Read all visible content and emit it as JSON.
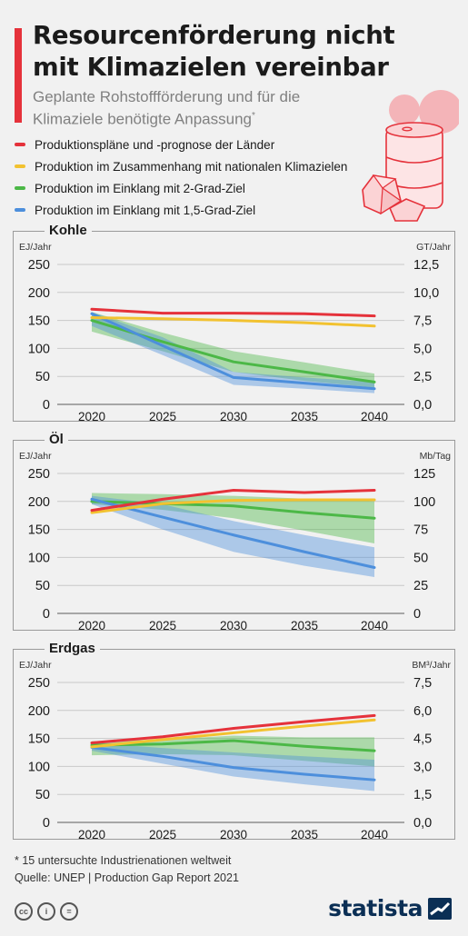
{
  "header": {
    "title": "Resourcenförderung nicht mit Klimazielen vereinbar",
    "subtitle": "Geplante Rohstoffförderung und für die Klimaziele benötigte Anpassung",
    "subtitle_mark": "*"
  },
  "legend": [
    {
      "label": "Produktionspläne und -prognose der Länder",
      "color": "#e5323b"
    },
    {
      "label": "Produktion im Zusammenhang mit nationalen Klimazielen",
      "color": "#f2c230"
    },
    {
      "label": "Produktion im Einklang mit 2-Grad-Ziel",
      "color": "#4cb847"
    },
    {
      "label": "Produktion im Einklang mit 1,5-Grad-Ziel",
      "color": "#4d8fdc"
    }
  ],
  "chart_data": [
    {
      "type": "line",
      "title": "Kohle",
      "ylabel": "EJ/Jahr",
      "ylabel_right": "GT/Jahr",
      "x": [
        2020,
        2025,
        2030,
        2035,
        2040
      ],
      "x_ticks": [
        "2020",
        "2025",
        "2030",
        "2035",
        "2040"
      ],
      "ylim": [
        0,
        250
      ],
      "y_ticks": [
        "0",
        "50",
        "100",
        "150",
        "200",
        "250"
      ],
      "y_ticks_right": [
        "0,0",
        "2,5",
        "5,0",
        "7,5",
        "10,0",
        "12,5"
      ],
      "grid": true,
      "series": [
        {
          "values": [
            170,
            163,
            163,
            162,
            158
          ],
          "color": "#e5323b"
        },
        {
          "values": [
            155,
            153,
            150,
            146,
            140
          ],
          "color": "#f2c230"
        },
        {
          "values": [
            150,
            112,
            76,
            58,
            40
          ],
          "color": "#4cb847",
          "band": {
            "low": [
              130,
              95,
              58,
              42,
              30
            ],
            "high": [
              165,
              128,
              95,
              75,
              55
            ]
          }
        },
        {
          "values": [
            162,
            105,
            48,
            38,
            28
          ],
          "color": "#4d8fdc",
          "band": {
            "low": [
              140,
              88,
              35,
              28,
              20
            ],
            "high": [
              165,
              120,
              58,
              48,
              40
            ]
          }
        }
      ]
    },
    {
      "type": "line",
      "title": "Öl",
      "ylabel": "EJ/Jahr",
      "ylabel_right": "Mb/Tag",
      "x": [
        2020,
        2025,
        2030,
        2035,
        2040
      ],
      "x_ticks": [
        "2020",
        "2025",
        "2030",
        "2035",
        "2040"
      ],
      "ylim": [
        0,
        250
      ],
      "y_ticks": [
        "0",
        "50",
        "100",
        "150",
        "200",
        "250"
      ],
      "y_ticks_right": [
        "0",
        "25",
        "50",
        "75",
        "100",
        "125"
      ],
      "grid": true,
      "series": [
        {
          "values": [
            184,
            204,
            220,
            216,
            220
          ],
          "color": "#e5323b"
        },
        {
          "values": [
            180,
            196,
            202,
            203,
            203
          ],
          "color": "#f2c230"
        },
        {
          "values": [
            200,
            196,
            192,
            180,
            170
          ],
          "color": "#4cb847",
          "band": {
            "low": [
              195,
              185,
              170,
              148,
              125
            ],
            "high": [
              215,
              213,
              210,
              205,
              200
            ]
          }
        },
        {
          "values": [
            204,
            172,
            140,
            110,
            82
          ],
          "color": "#4d8fdc",
          "band": {
            "low": [
              195,
              150,
              110,
              85,
              65
            ],
            "high": [
              210,
              195,
              165,
              140,
              118
            ]
          }
        }
      ]
    },
    {
      "type": "line",
      "title": "Erdgas",
      "ylabel": "EJ/Jahr",
      "ylabel_right": "BM³/Jahr",
      "x": [
        2020,
        2025,
        2030,
        2035,
        2040
      ],
      "x_ticks": [
        "2020",
        "2025",
        "2030",
        "2035",
        "2040"
      ],
      "ylim": [
        0,
        250
      ],
      "y_ticks": [
        "0",
        "50",
        "100",
        "150",
        "200",
        "250"
      ],
      "y_ticks_right": [
        "0,0",
        "1,5",
        "3,0",
        "4,5",
        "6,0",
        "7,5"
      ],
      "grid": true,
      "series": [
        {
          "values": [
            142,
            153,
            168,
            180,
            191
          ],
          "color": "#e5323b"
        },
        {
          "values": [
            135,
            148,
            160,
            172,
            183
          ],
          "color": "#f2c230"
        },
        {
          "values": [
            138,
            140,
            146,
            136,
            128
          ],
          "color": "#4cb847",
          "band": {
            "low": [
              120,
              122,
              120,
              110,
              100
            ],
            "high": [
              145,
              148,
              155,
              152,
              152
            ]
          }
        },
        {
          "values": [
            134,
            118,
            98,
            86,
            76
          ],
          "color": "#4d8fdc",
          "band": {
            "low": [
              128,
              105,
              82,
              68,
              56
            ],
            "high": [
              142,
              133,
              125,
              118,
              112
            ]
          }
        }
      ]
    }
  ],
  "footer": {
    "footnote": "* 15 untersuchte Industrienationen weltweit",
    "source": "Quelle: UNEP | Production Gap Report 2021",
    "license_icons": [
      "cc-icon",
      "by-icon",
      "nd-icon"
    ],
    "license_glyphs": [
      "cc",
      "i",
      "="
    ],
    "brand": "statista"
  }
}
